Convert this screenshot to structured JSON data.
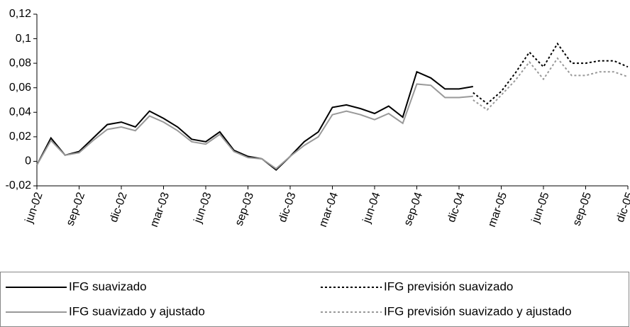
{
  "chart_data": {
    "type": "line",
    "categories": [
      "jun-02",
      null,
      null,
      "sep-02",
      null,
      null,
      "dic-02",
      null,
      null,
      "mar-03",
      null,
      null,
      "jun-03",
      null,
      null,
      "sep-03",
      null,
      null,
      "dic-03",
      null,
      null,
      "mar-04",
      null,
      null,
      "jun-04",
      null,
      null,
      "sep-04",
      null,
      null,
      "dic-04",
      null,
      null,
      "mar-05",
      null,
      null,
      "jun-05",
      null,
      null,
      "sep-05",
      null,
      null,
      "dic-05"
    ],
    "series": [
      {
        "name": "IFG suavizado",
        "color": "#000000",
        "dashed": false,
        "values": [
          -0.003,
          0.019,
          0.005,
          0.008,
          0.019,
          0.03,
          0.032,
          0.028,
          0.041,
          0.035,
          0.028,
          0.018,
          0.016,
          0.024,
          0.009,
          0.004,
          0.002,
          -0.007,
          0.004,
          0.016,
          0.024,
          0.044,
          0.046,
          0.043,
          0.039,
          0.045,
          0.036,
          0.073,
          0.068,
          0.059,
          0.059,
          0.061,
          null,
          null,
          null,
          null,
          null,
          null,
          null,
          null,
          null,
          null,
          null
        ]
      },
      {
        "name": "IFG previsión suavizado",
        "color": "#000000",
        "dashed": true,
        "values": [
          null,
          null,
          null,
          null,
          null,
          null,
          null,
          null,
          null,
          null,
          null,
          null,
          null,
          null,
          null,
          null,
          null,
          null,
          null,
          null,
          null,
          null,
          null,
          null,
          null,
          null,
          null,
          null,
          null,
          null,
          null,
          0.056,
          0.047,
          0.057,
          0.072,
          0.089,
          0.077,
          0.096,
          0.08,
          0.08,
          0.082,
          0.082,
          0.077
        ]
      },
      {
        "name": "IFG suavizado y ajustado",
        "color": "#999999",
        "dashed": false,
        "values": [
          -0.003,
          0.017,
          0.005,
          0.007,
          0.017,
          0.026,
          0.028,
          0.025,
          0.037,
          0.032,
          0.025,
          0.016,
          0.014,
          0.022,
          0.008,
          0.003,
          0.002,
          -0.006,
          0.004,
          0.013,
          0.02,
          0.038,
          0.041,
          0.038,
          0.034,
          0.039,
          0.031,
          0.063,
          0.062,
          0.052,
          0.052,
          0.053,
          null,
          null,
          null,
          null,
          null,
          null,
          null,
          null,
          null,
          null,
          null
        ]
      },
      {
        "name": "IFG previsión suavizado y ajustado",
        "color": "#999999",
        "dashed": true,
        "values": [
          null,
          null,
          null,
          null,
          null,
          null,
          null,
          null,
          null,
          null,
          null,
          null,
          null,
          null,
          null,
          null,
          null,
          null,
          null,
          null,
          null,
          null,
          null,
          null,
          null,
          null,
          null,
          null,
          null,
          null,
          null,
          0.05,
          0.042,
          0.054,
          0.066,
          0.081,
          0.067,
          0.084,
          0.07,
          0.07,
          0.073,
          0.073,
          0.069
        ]
      }
    ],
    "ylim": [
      -0.02,
      0.12
    ],
    "yticks": [
      {
        "value": -0.02,
        "label": "-0,02"
      },
      0,
      {
        "value": 0.02,
        "label": "0,02"
      },
      {
        "value": 0.04,
        "label": "0,04"
      },
      {
        "value": 0.06,
        "label": "0,06"
      },
      {
        "value": 0.08,
        "label": "0,08"
      },
      {
        "value": 0.1,
        "label": "0,1"
      },
      {
        "value": 0.12,
        "label": "0,12"
      }
    ],
    "grid": false
  }
}
